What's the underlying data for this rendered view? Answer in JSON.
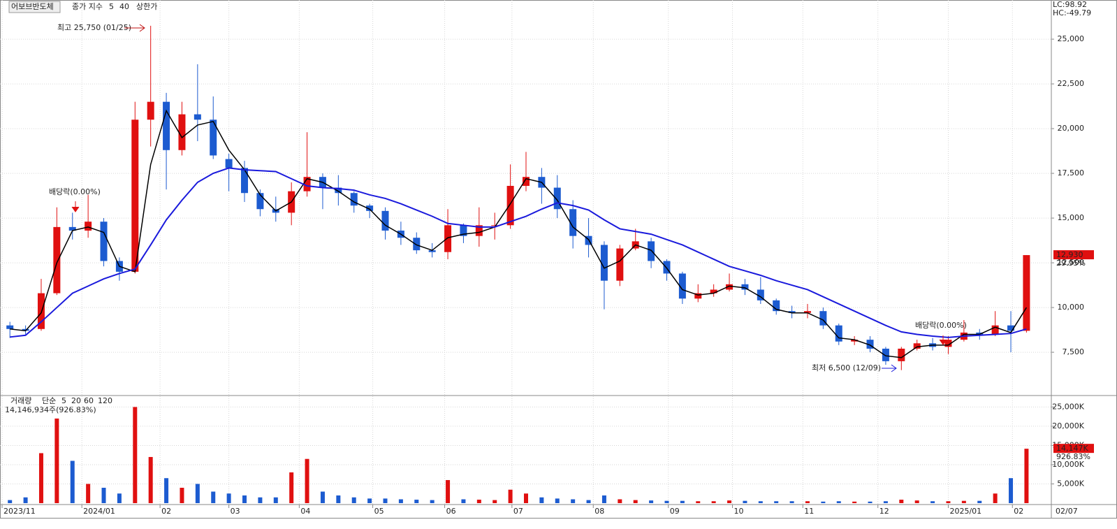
{
  "chart_data": [
    {
      "type": "candlestick",
      "title": "어보브반도체",
      "legend_label": "종가 지수",
      "extra_legend": "상한가",
      "corner_labels": [
        "LC:98.92",
        "HC:-49.79"
      ],
      "annotations": [
        "최고 25,750 (01/25)",
        "배당락(0.00%)",
        "배당락(0.00%)",
        "최저 6,500 (12/09)"
      ],
      "open": [
        9000,
        8800,
        8800,
        10800,
        14500,
        14300,
        14800,
        12600,
        12000,
        20500,
        21500,
        18800,
        20800,
        20500,
        18300,
        17800,
        16400,
        15500,
        15300,
        16500,
        17300,
        16700,
        16400,
        15700,
        15400,
        14300,
        13900,
        13200,
        13100,
        14600,
        14000,
        14600,
        14600,
        16800,
        17300,
        16700,
        15500,
        14000,
        13500,
        11500,
        13300,
        13700,
        12600,
        11900,
        10500,
        10800,
        11000,
        11300,
        11000,
        10400,
        9800,
        9700,
        9800,
        9000,
        8100,
        8200,
        7700,
        7000,
        7700,
        8000,
        7800,
        8200,
        8600,
        8500,
        9000,
        8700
      ],
      "high": [
        9200,
        9000,
        11600,
        15600,
        15300,
        16300,
        15000,
        12800,
        21500,
        25750,
        22000,
        21500,
        23600,
        21800,
        18600,
        18200,
        16600,
        16200,
        17000,
        19800,
        17500,
        17400,
        16500,
        15800,
        15600,
        14800,
        14200,
        13600,
        15500,
        14700,
        15600,
        15300,
        18000,
        18700,
        17800,
        17400,
        16000,
        15000,
        13700,
        13500,
        14400,
        13900,
        12700,
        12000,
        11300,
        11300,
        11900,
        11600,
        11700,
        10500,
        10100,
        10200,
        10000,
        9100,
        8400,
        8400,
        7800,
        7800,
        8200,
        8300,
        8400,
        9300,
        8800,
        9800,
        9800,
        12930
      ],
      "low": [
        8300,
        8500,
        8700,
        10700,
        13800,
        13900,
        12300,
        11500,
        11900,
        19000,
        16600,
        18500,
        19300,
        18300,
        16500,
        15900,
        15100,
        14800,
        14600,
        16200,
        15500,
        15700,
        15300,
        15000,
        13800,
        13500,
        13000,
        12800,
        12700,
        13600,
        13400,
        13800,
        14400,
        16500,
        15800,
        15000,
        13300,
        12800,
        9900,
        11200,
        13200,
        12200,
        11500,
        10200,
        10300,
        10600,
        10900,
        10700,
        10200,
        9600,
        9400,
        9400,
        8800,
        7900,
        7900,
        7500,
        6800,
        6500,
        7600,
        7600,
        7400,
        8100,
        8200,
        8400,
        7500,
        8600
      ],
      "close": [
        8800,
        8700,
        10800,
        14500,
        14300,
        14800,
        12600,
        12000,
        20500,
        21500,
        18800,
        20800,
        20500,
        18500,
        17800,
        16400,
        15500,
        15300,
        16500,
        17300,
        16700,
        16400,
        15700,
        15400,
        14300,
        13900,
        13200,
        13100,
        14600,
        14000,
        14600,
        14600,
        16800,
        17300,
        16700,
        15500,
        14000,
        13500,
        11500,
        13300,
        13700,
        12600,
        11900,
        10500,
        10800,
        11000,
        11300,
        11000,
        10400,
        9800,
        9700,
        9800,
        9000,
        8100,
        8200,
        7700,
        7000,
        7700,
        8000,
        7800,
        8200,
        8600,
        8500,
        9000,
        8700,
        12930
      ],
      "up_color": "#e01010",
      "down_color": "#1c5bd0",
      "series": [
        {
          "name": "5",
          "color": "#000000",
          "values": [
            8800,
            8700,
            9700,
            12500,
            14300,
            14500,
            14200,
            12300,
            12000,
            18000,
            21000,
            19500,
            20200,
            20400,
            18800,
            17700,
            16300,
            15400,
            15900,
            17200,
            17000,
            16500,
            15900,
            15500,
            14600,
            14100,
            13500,
            13200,
            13900,
            14100,
            14200,
            14500,
            15800,
            17200,
            17000,
            16000,
            14500,
            13800,
            12200,
            12600,
            13500,
            13200,
            12200,
            11000,
            10700,
            10800,
            11200,
            11100,
            10600,
            9900,
            9700,
            9700,
            9300,
            8300,
            8200,
            7900,
            7300,
            7200,
            7800,
            7900,
            7900,
            8500,
            8500,
            8900,
            8600,
            10000
          ]
        },
        {
          "name": "40",
          "color": "#1a1adc",
          "values": [
            8350,
            8450,
            9200,
            10000,
            10800,
            11200,
            11600,
            11900,
            12150,
            13500,
            14900,
            16000,
            17000,
            17500,
            17800,
            17700,
            17650,
            17600,
            17200,
            16800,
            16700,
            16650,
            16560,
            16300,
            16100,
            15800,
            15450,
            15100,
            14700,
            14600,
            14500,
            14500,
            14800,
            15100,
            15500,
            15850,
            15700,
            15450,
            14900,
            14400,
            14250,
            14100,
            13800,
            13500,
            13100,
            12700,
            12300,
            12050,
            11800,
            11500,
            11250,
            11000,
            10600,
            10200,
            9800,
            9400,
            9000,
            8640,
            8500,
            8400,
            8330,
            8400,
            8450,
            8500,
            8550,
            8800
          ]
        }
      ],
      "price_tag": {
        "value": 12930,
        "label": "12,930",
        "change": "29.95%"
      },
      "xlim": [
        0,
        67
      ],
      "xticks": [
        {
          "value": 0,
          "label": "2023/11"
        },
        {
          "value": 5.1,
          "label": "2024/01"
        },
        {
          "value": 10.1,
          "label": "02"
        },
        {
          "value": 14.5,
          "label": "03"
        },
        {
          "value": 19.0,
          "label": "04"
        },
        {
          "value": 23.7,
          "label": "05"
        },
        {
          "value": 28.3,
          "label": "06"
        },
        {
          "value": 32.6,
          "label": "07"
        },
        {
          "value": 37.8,
          "label": "08"
        },
        {
          "value": 42.6,
          "label": "09"
        },
        {
          "value": 46.7,
          "label": "10"
        },
        {
          "value": 51.2,
          "label": "11"
        },
        {
          "value": 56.0,
          "label": "12"
        },
        {
          "value": 60.5,
          "label": "2025/01"
        },
        {
          "value": 64.6,
          "label": "02"
        }
      ],
      "end_date": "02/07",
      "ylim": [
        5120,
        27190
      ],
      "yticks": [
        {
          "value": 7500,
          "label": "7,500"
        },
        {
          "value": 10000,
          "label": "10,000"
        },
        {
          "value": 12500,
          "label": "12,500"
        },
        {
          "value": 15000,
          "label": "15,000"
        },
        {
          "value": 17500,
          "label": "17,500"
        },
        {
          "value": 20000,
          "label": "20,000"
        },
        {
          "value": 22500,
          "label": "22,500"
        },
        {
          "value": 25000,
          "label": "25,000"
        }
      ],
      "grid": true
    },
    {
      "type": "volume",
      "title": "거래량",
      "legend_label": "단순",
      "ma_legend": [
        {
          "name": "5",
          "color": "#b01cb0"
        },
        {
          "name": "20",
          "color": "#d8a000"
        },
        {
          "name": "60",
          "color": "#2a8a2a"
        },
        {
          "name": "120",
          "color": "#777777"
        }
      ],
      "subtitle": "14,146,934주(926.83%)",
      "values": [
        800,
        1500,
        13000,
        22000,
        11000,
        5000,
        4000,
        2500,
        25000,
        12000,
        6500,
        4000,
        5000,
        3000,
        2500,
        2000,
        1500,
        1500,
        8000,
        11500,
        3000,
        2000,
        1500,
        1200,
        1200,
        1000,
        900,
        800,
        6000,
        1000,
        900,
        800,
        3500,
        2500,
        1500,
        1200,
        1000,
        800,
        2000,
        1000,
        800,
        700,
        600,
        600,
        500,
        500,
        700,
        600,
        500,
        500,
        500,
        500,
        400,
        500,
        400,
        400,
        500,
        900,
        700,
        500,
        500,
        600,
        600,
        2500,
        6500,
        14147
      ],
      "volume_tag": {
        "value": 14147,
        "label": "14,147K",
        "change": "926.83%"
      },
      "ylim": [
        0,
        27800
      ],
      "yticks": [
        {
          "value": 5000,
          "label": "5,000K"
        },
        {
          "value": 10000,
          "label": "10,000K"
        },
        {
          "value": 15000,
          "label": "15,000K"
        },
        {
          "value": 20000,
          "label": "20,000K"
        },
        {
          "value": 25000,
          "label": "25,000K"
        }
      ],
      "grid": true
    }
  ]
}
